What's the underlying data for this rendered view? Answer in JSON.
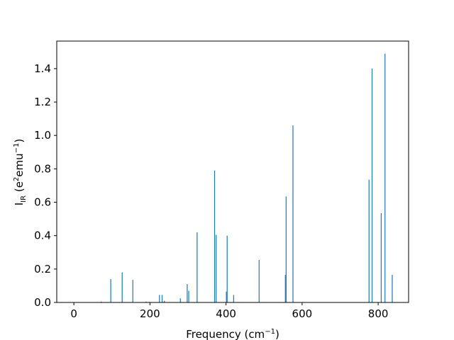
{
  "chart_data": {
    "type": "bar",
    "xlabel": "Frequency (cm",
    "xlabel_sup": "−1",
    "xlabel_end": ")",
    "ylabel_main": "I",
    "ylabel_sub": "IR",
    "ylabel_rest": " (e",
    "ylabel_sup1": "2",
    "ylabel_mid": "emu",
    "ylabel_sup2": "−1",
    "ylabel_end": ")",
    "xlim": [
      -45,
      880
    ],
    "ylim": [
      0,
      1.565
    ],
    "xticks": [
      0,
      200,
      400,
      600,
      800
    ],
    "xtick_labels": [
      "0",
      "200",
      "400",
      "600",
      "800"
    ],
    "yticks": [
      0.0,
      0.2,
      0.4,
      0.6,
      0.8,
      1.0,
      1.2,
      1.4
    ],
    "ytick_labels": [
      "0.0",
      "0.2",
      "0.4",
      "0.6",
      "0.8",
      "1.0",
      "1.2",
      "1.4"
    ],
    "bar_color": "#1f77b4",
    "x": [
      72,
      97,
      127,
      155,
      190,
      225,
      232,
      238,
      280,
      298,
      302,
      324,
      370,
      374,
      401,
      403,
      420,
      487,
      556,
      558,
      576,
      776,
      784,
      808,
      818,
      837
    ],
    "values": [
      0.005,
      0.14,
      0.18,
      0.135,
      0.005,
      0.045,
      0.045,
      0.01,
      0.025,
      0.11,
      0.07,
      0.42,
      0.79,
      0.405,
      0.065,
      0.4,
      0.045,
      0.255,
      0.165,
      0.635,
      1.06,
      0.735,
      1.4,
      0.535,
      1.49,
      0.165
    ]
  }
}
